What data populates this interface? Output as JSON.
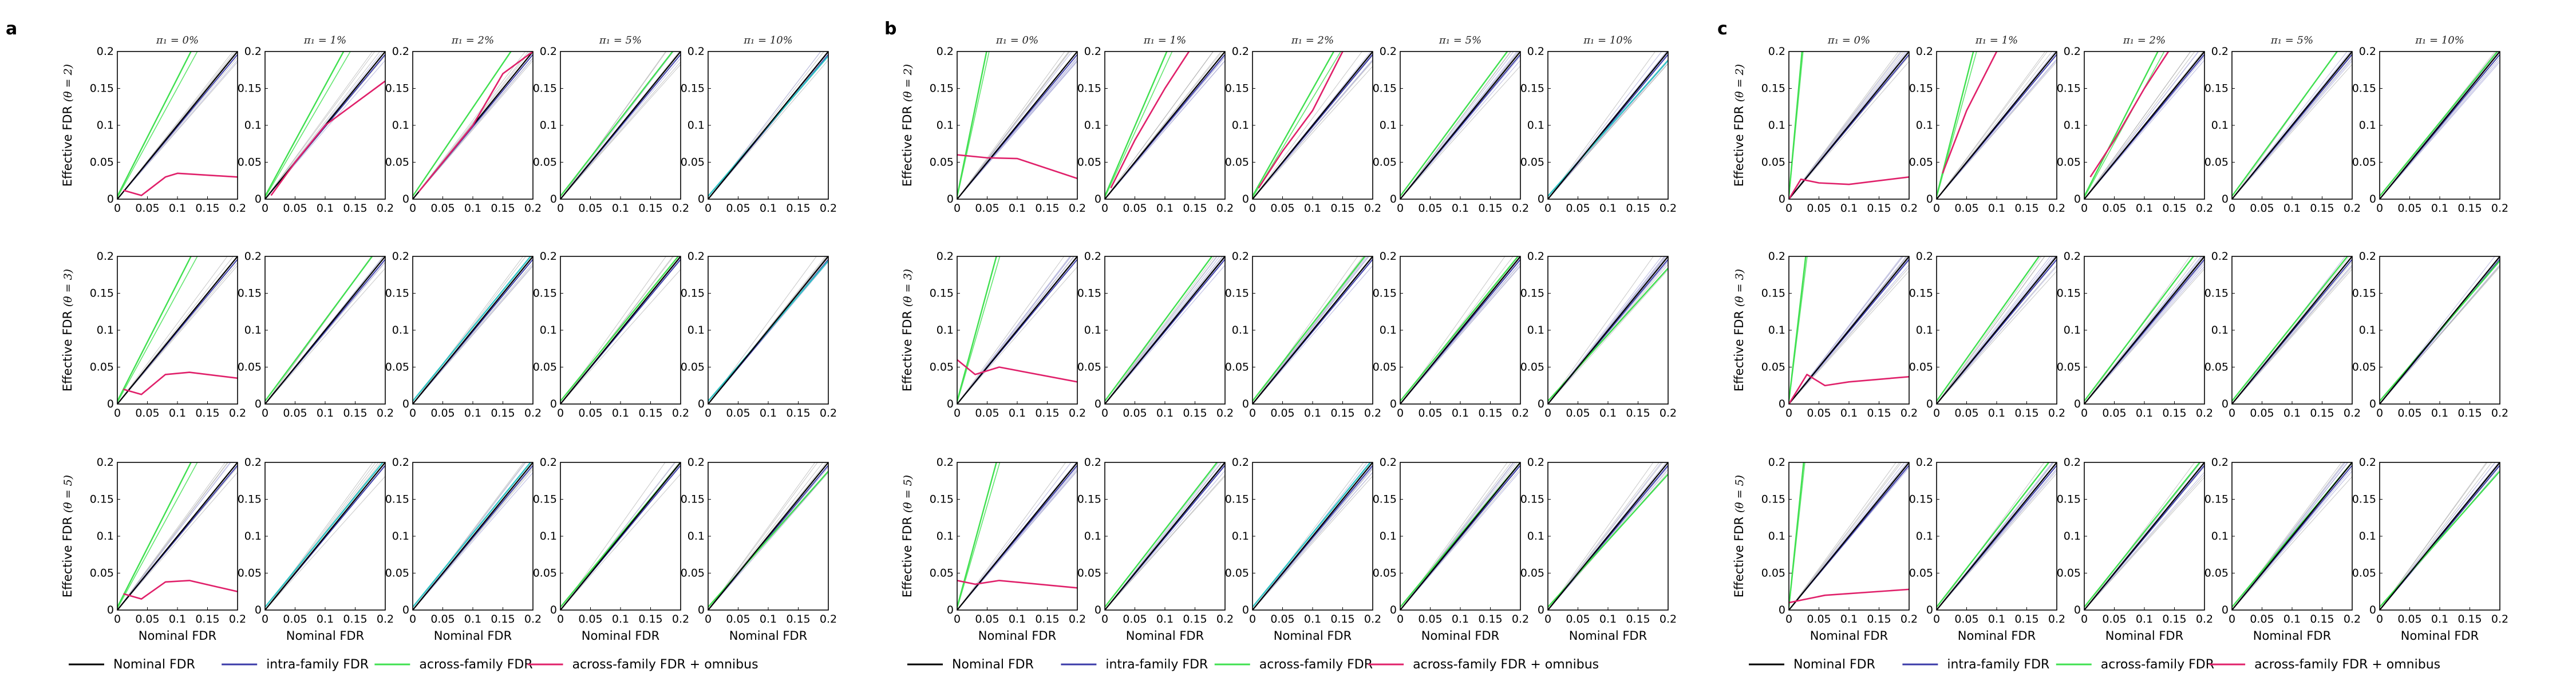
{
  "figure": {
    "panels": [
      "a",
      "b",
      "c"
    ],
    "columns": [
      "π₁ = 0%",
      "π₁ = 1%",
      "π₁ = 2%",
      "π₁ = 5%",
      "π₁ = 10%"
    ],
    "rows": [
      {
        "ylabel": "Effective FDR",
        "theta": "(θ = 2)"
      },
      {
        "ylabel": "Effective FDR",
        "theta": "(θ = 3)"
      },
      {
        "ylabel": "Effective FDR",
        "theta": "(θ = 5)"
      }
    ],
    "xlabel": "Nominal FDR",
    "xticks": [
      "0",
      "0.05",
      "0.1",
      "0.15",
      "0.2"
    ],
    "yticks": [
      "0",
      "0.05",
      "0.1",
      "0.15",
      "0.2"
    ]
  },
  "legend": [
    {
      "label": "Nominal FDR",
      "color": "#000000"
    },
    {
      "label": "intra-family FDR",
      "color": "#3a3aa8"
    },
    {
      "label": "across-family FDR",
      "color": "#3fe04f"
    },
    {
      "label": "across-family FDR + omnibus",
      "color": "#e0206a"
    }
  ],
  "colors": {
    "nominal": "#000000",
    "intra": "#3a3aa8",
    "intra_light": "#b8b8e0",
    "across": "#3fe04f",
    "across_alt": "#2ec4c4",
    "omnibus": "#e0206a",
    "grey_band": "#9a9a9a"
  },
  "chart_data": [
    {
      "panel": "a",
      "type": "line",
      "xlabel": "Nominal FDR",
      "ylabel": "Effective FDR",
      "xlim": [
        0,
        0.2
      ],
      "ylim": [
        0,
        0.2
      ],
      "cells": [
        [
          {
            "across": 1.6,
            "omnibus": [
              [
                0.01,
                0.012
              ],
              [
                0.04,
                0.005
              ],
              [
                0.08,
                0.03
              ],
              [
                0.1,
                0.035
              ],
              [
                0.2,
                0.03
              ]
            ]
          },
          {
            "across": 1.5,
            "omnibus": [
              [
                0.01,
                0.005
              ],
              [
                0.05,
                0.05
              ],
              [
                0.1,
                0.1
              ],
              [
                0.15,
                0.13
              ],
              [
                0.2,
                0.16
              ]
            ]
          },
          {
            "across": 1.2,
            "omnibus": [
              [
                0.01,
                0.01
              ],
              [
                0.05,
                0.05
              ],
              [
                0.1,
                0.1
              ],
              [
                0.15,
                0.17
              ],
              [
                0.2,
                0.2
              ]
            ]
          },
          {
            "across": 1.05
          },
          {
            "across": 0.95,
            "across_color": "across_alt"
          }
        ],
        [
          {
            "across": 1.6,
            "omnibus": [
              [
                0.01,
                0.02
              ],
              [
                0.04,
                0.013
              ],
              [
                0.08,
                0.04
              ],
              [
                0.12,
                0.043
              ],
              [
                0.2,
                0.035
              ]
            ]
          },
          {
            "across": 1.1
          },
          {
            "across": 1.0,
            "across_color": "across_alt"
          },
          {
            "across": 1.0
          },
          {
            "across": 0.95,
            "across_color": "across_alt"
          }
        ],
        [
          {
            "across": 1.6,
            "omnibus": [
              [
                0.01,
                0.022
              ],
              [
                0.04,
                0.015
              ],
              [
                0.08,
                0.038
              ],
              [
                0.12,
                0.04
              ],
              [
                0.2,
                0.025
              ]
            ]
          },
          {
            "across": 1.0,
            "across_color": "across_alt"
          },
          {
            "across": 1.0,
            "across_color": "across_alt"
          },
          {
            "across": 0.98
          },
          {
            "across": 0.92
          }
        ]
      ]
    },
    {
      "panel": "b",
      "type": "line",
      "xlabel": "Nominal FDR",
      "ylabel": "Effective FDR",
      "xlim": [
        0,
        0.2
      ],
      "ylim": [
        0,
        0.2
      ],
      "cells": [
        [
          {
            "across": 4.0,
            "omnibus": [
              [
                0.0,
                0.06
              ],
              [
                0.05,
                0.056
              ],
              [
                0.1,
                0.055
              ],
              [
                0.2,
                0.028
              ]
            ]
          },
          {
            "across": 1.9,
            "omnibus": [
              [
                0.01,
                0.015
              ],
              [
                0.05,
                0.08
              ],
              [
                0.1,
                0.15
              ],
              [
                0.14,
                0.2
              ]
            ]
          },
          {
            "across": 1.45,
            "omnibus": [
              [
                0.01,
                0.015
              ],
              [
                0.05,
                0.065
              ],
              [
                0.1,
                0.12
              ],
              [
                0.15,
                0.2
              ]
            ]
          },
          {
            "across": 1.1
          },
          {
            "across": 0.92,
            "across_color": "across_alt"
          }
        ],
        [
          {
            "across": 3.0,
            "omnibus": [
              [
                0.0,
                0.06
              ],
              [
                0.03,
                0.04
              ],
              [
                0.07,
                0.05
              ],
              [
                0.2,
                0.03
              ]
            ]
          },
          {
            "across": 1.1
          },
          {
            "across": 1.05
          },
          {
            "across": 1.0
          },
          {
            "across": 0.9
          }
        ],
        [
          {
            "across": 3.0,
            "omnibus": [
              [
                0.0,
                0.04
              ],
              [
                0.03,
                0.035
              ],
              [
                0.07,
                0.04
              ],
              [
                0.2,
                0.03
              ]
            ]
          },
          {
            "across": 1.05
          },
          {
            "across": 1.0,
            "across_color": "across_alt"
          },
          {
            "across": 0.98
          },
          {
            "across": 0.9
          }
        ]
      ]
    },
    {
      "panel": "c",
      "type": "line",
      "xlabel": "Nominal FDR",
      "ylabel": "Effective FDR",
      "xlim": [
        0,
        0.2
      ],
      "ylim": [
        0,
        0.2
      ],
      "cells": [
        [
          {
            "across": 9.0,
            "omnibus": [
              [
                0.0,
                0.0
              ],
              [
                0.02,
                0.027
              ],
              [
                0.05,
                0.022
              ],
              [
                0.1,
                0.02
              ],
              [
                0.2,
                0.03
              ]
            ]
          },
          {
            "across": 3.2,
            "omnibus": [
              [
                0.01,
                0.035
              ],
              [
                0.05,
                0.12
              ],
              [
                0.1,
                0.2
              ]
            ]
          },
          {
            "across": 1.6,
            "omnibus": [
              [
                0.01,
                0.03
              ],
              [
                0.05,
                0.08
              ],
              [
                0.1,
                0.15
              ],
              [
                0.14,
                0.2
              ]
            ]
          },
          {
            "across": 1.12
          },
          {
            "across": 1.0
          }
        ],
        [
          {
            "across": 7.0,
            "omnibus": [
              [
                0.0,
                0.0
              ],
              [
                0.03,
                0.04
              ],
              [
                0.06,
                0.025
              ],
              [
                0.1,
                0.03
              ],
              [
                0.2,
                0.037
              ]
            ]
          },
          {
            "across": 1.15
          },
          {
            "across": 1.08
          },
          {
            "across": 1.02
          },
          {
            "across": 0.95
          }
        ],
        [
          {
            "across": 8.0,
            "omnibus": [
              [
                0.0,
                0.01
              ],
              [
                0.03,
                0.015
              ],
              [
                0.06,
                0.02
              ],
              [
                0.2,
                0.028
              ]
            ]
          },
          {
            "across": 1.05
          },
          {
            "across": 1.02
          },
          {
            "across": 0.98
          },
          {
            "across": 0.92
          }
        ]
      ]
    }
  ]
}
